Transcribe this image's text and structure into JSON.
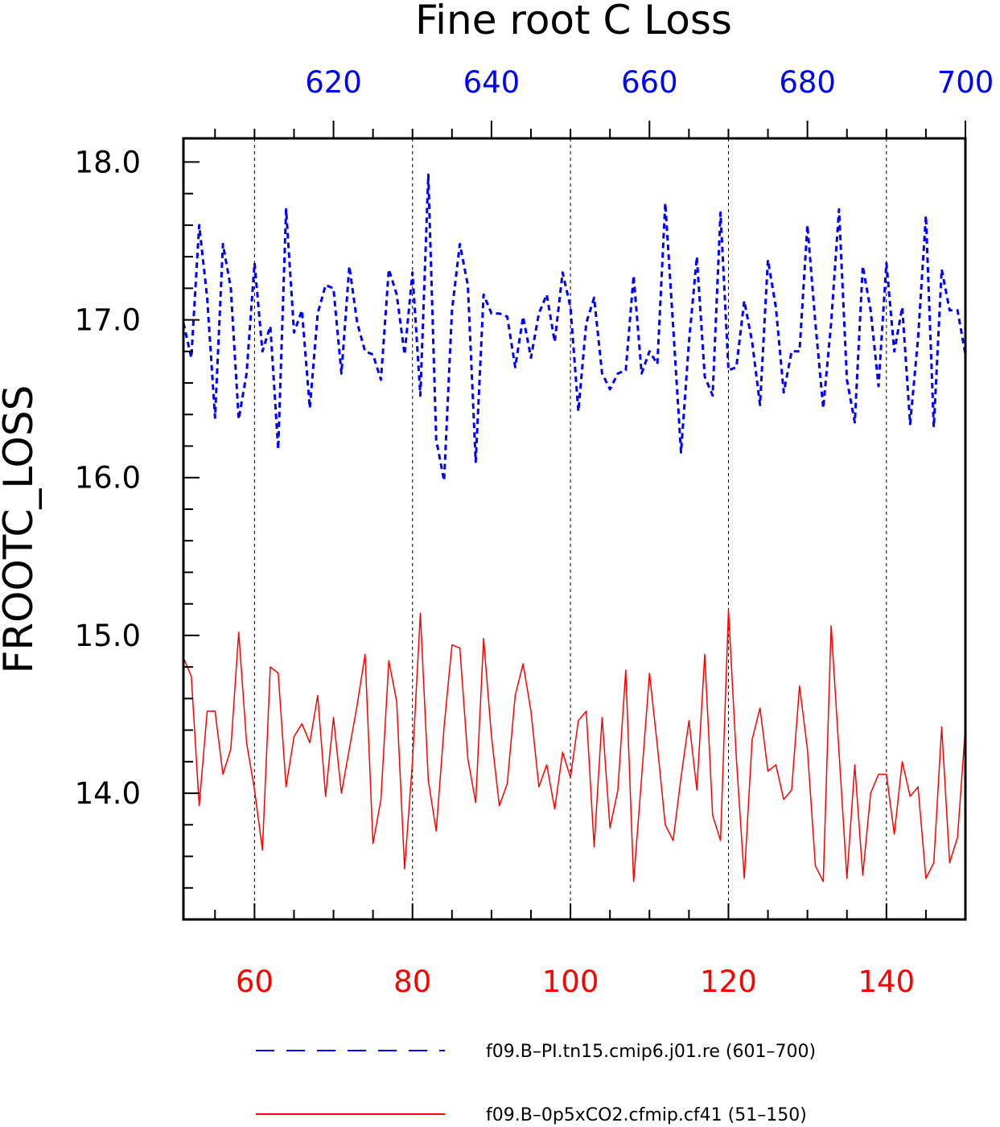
{
  "chart_data": {
    "type": "line",
    "title": "Fine root C Loss",
    "ylabel": "FROOTC_LOSS",
    "xlabel": "",
    "ylim": [
      13.2,
      18.15
    ],
    "yticks": [
      "14.0",
      "15.0",
      "16.0",
      "17.0",
      "18.0"
    ],
    "bottom_axis": {
      "range": [
        51,
        150
      ],
      "ticks": [
        "60",
        "80",
        "100",
        "120",
        "140"
      ],
      "color": "#ff0000"
    },
    "top_axis": {
      "range": [
        601,
        700
      ],
      "ticks": [
        "620",
        "640",
        "660",
        "680",
        "700"
      ],
      "color": "#0000ff"
    },
    "grid": "vertical dashed at major ticks",
    "legend_placement": "bottom",
    "series": [
      {
        "name": "f09.B–PI.tn15.cmip6.j01.re (601–700)",
        "axis": "top",
        "color": "#0000ff",
        "style": "dashed",
        "x_start": 601,
        "values": [
          16.98,
          16.76,
          17.6,
          17.14,
          16.38,
          17.48,
          17.2,
          16.37,
          16.66,
          17.36,
          16.8,
          16.96,
          16.18,
          17.7,
          16.92,
          17.06,
          16.44,
          17.04,
          17.22,
          17.2,
          16.66,
          17.34,
          16.98,
          16.8,
          16.78,
          16.62,
          17.32,
          17.16,
          16.78,
          17.3,
          16.52,
          17.92,
          16.24,
          15.98,
          17.06,
          17.48,
          17.22,
          16.1,
          17.16,
          17.04,
          17.04,
          17.02,
          16.7,
          17.02,
          16.76,
          17.04,
          17.16,
          16.86,
          17.3,
          17.08,
          16.42,
          16.98,
          17.14,
          16.66,
          16.56,
          16.66,
          16.68,
          17.28,
          16.66,
          16.8,
          16.72,
          17.74,
          16.96,
          16.16,
          16.86,
          17.4,
          16.64,
          16.52,
          17.68,
          16.68,
          16.7,
          17.12,
          16.86,
          16.46,
          17.38,
          17.08,
          16.54,
          16.8,
          16.8,
          17.6,
          16.98,
          16.44,
          16.98,
          17.7,
          16.62,
          16.35,
          17.34,
          17.06,
          16.58,
          17.36,
          16.8,
          17.08,
          16.34,
          16.88,
          17.66,
          16.32,
          17.32,
          17.06,
          17.06,
          16.78
        ]
      },
      {
        "name": "f09.B–0p5xCO2.cfmip.cf41 (51–150)",
        "axis": "bottom",
        "color": "#ff0000",
        "style": "solid",
        "x_start": 51,
        "values": [
          14.86,
          14.74,
          13.92,
          14.52,
          14.52,
          14.12,
          14.28,
          15.02,
          14.32,
          14.02,
          13.64,
          14.8,
          14.76,
          14.04,
          14.36,
          14.44,
          14.32,
          14.62,
          13.98,
          14.48,
          14.0,
          14.28,
          14.56,
          14.88,
          13.68,
          13.96,
          14.84,
          14.58,
          13.52,
          14.2,
          15.14,
          14.08,
          13.76,
          14.42,
          14.94,
          14.92,
          14.22,
          13.94,
          14.98,
          14.36,
          13.92,
          14.06,
          14.62,
          14.82,
          14.52,
          14.04,
          14.18,
          13.9,
          14.26,
          14.1,
          14.46,
          14.52,
          13.66,
          14.48,
          13.78,
          14.02,
          14.78,
          13.44,
          14.1,
          14.76,
          14.3,
          13.8,
          13.7,
          14.1,
          14.46,
          14.02,
          14.88,
          13.86,
          13.7,
          15.16,
          14.22,
          13.46,
          14.34,
          14.54,
          14.14,
          14.18,
          13.96,
          14.02,
          14.68,
          14.28,
          13.54,
          13.44,
          15.06,
          14.26,
          13.46,
          14.18,
          13.48,
          14.0,
          14.12,
          14.12,
          13.74,
          14.2,
          13.98,
          14.04,
          13.46,
          13.56,
          14.42,
          13.56,
          13.72,
          14.42
        ]
      }
    ]
  }
}
